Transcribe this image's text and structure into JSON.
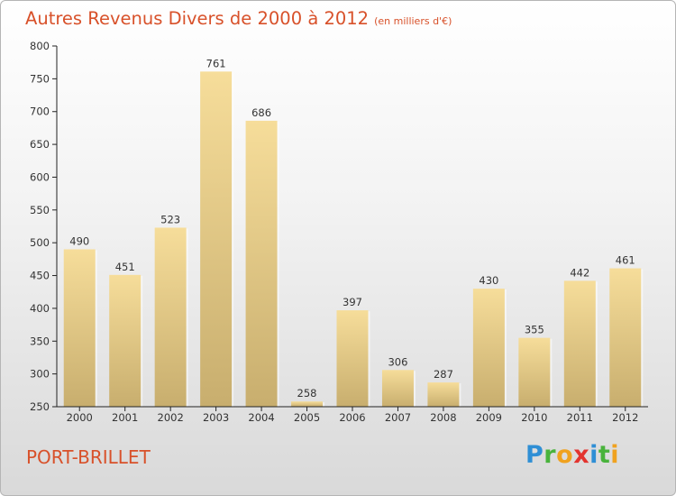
{
  "header": {
    "title": "Autres Revenus Divers de 2000 à 2012",
    "subtitle": "(en milliers d'€)"
  },
  "footer": {
    "city": "PORT-BRILLET",
    "logo_letters": [
      "P",
      "r",
      "o",
      "x",
      "i",
      "t",
      "i"
    ],
    "logo_colors": [
      "#2f8fd5",
      "#49b33c",
      "#f0a21f",
      "#e3342f",
      "#2f8fd5",
      "#49b33c",
      "#f0a21f"
    ]
  },
  "colors": {
    "title": "#d8512a",
    "bar_light": "#f6dd9a",
    "bar_dark": "#c8ae6e",
    "axis": "#222222",
    "grid": "#cfcfcf"
  },
  "chart_data": {
    "type": "bar",
    "title": "Autres Revenus Divers de 2000 à 2012",
    "categories": [
      "2000",
      "2001",
      "2002",
      "2003",
      "2004",
      "2005",
      "2006",
      "2007",
      "2008",
      "2009",
      "2010",
      "2011",
      "2012"
    ],
    "values": [
      490,
      451,
      523,
      761,
      686,
      258,
      397,
      306,
      287,
      430,
      355,
      442,
      461
    ],
    "ylim": [
      250,
      800
    ],
    "yticks": [
      250,
      300,
      350,
      400,
      450,
      500,
      550,
      600,
      650,
      700,
      750,
      800
    ],
    "grid": false,
    "xlabel": "",
    "ylabel": ""
  }
}
